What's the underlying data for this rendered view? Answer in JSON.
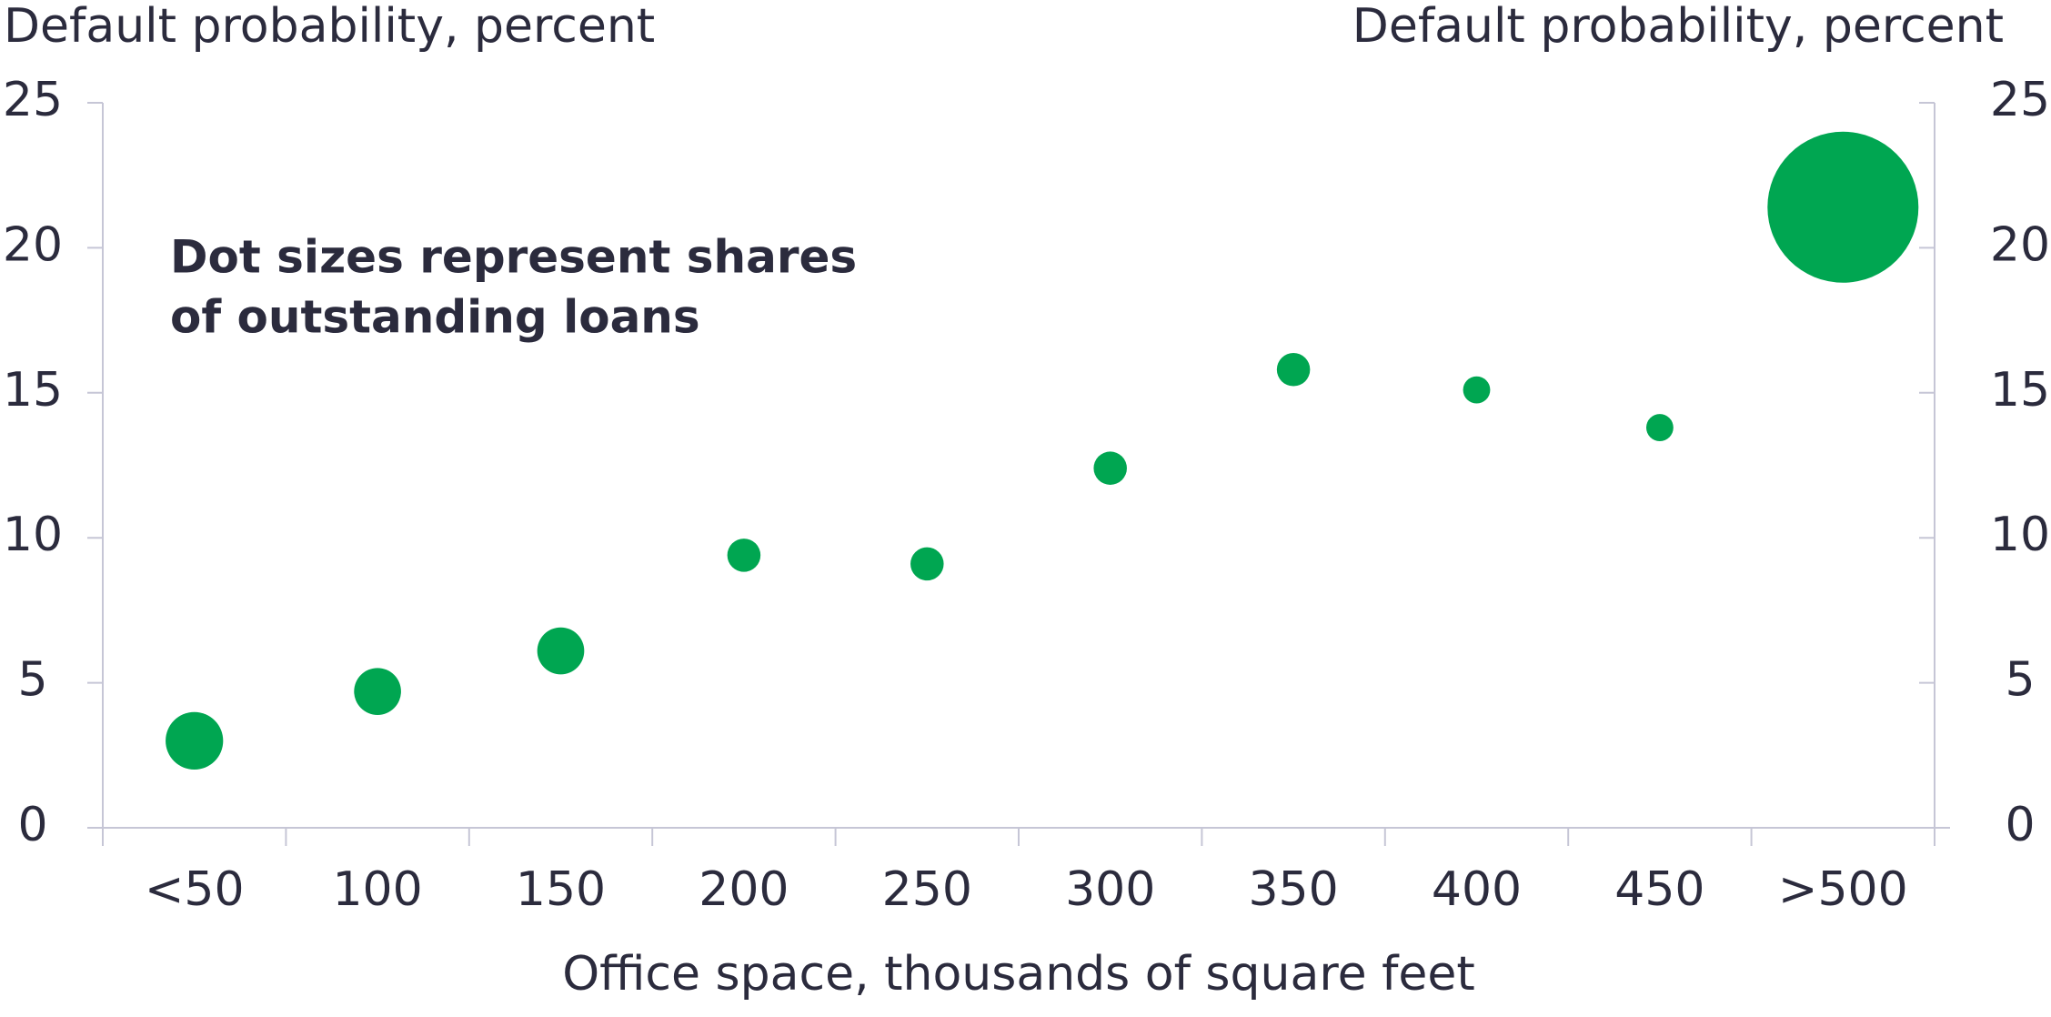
{
  "chart_data": {
    "type": "bubble",
    "ylabel": "Default probability, percent",
    "y2label": "Default probability, percent",
    "xlabel": "Office space, thousands of square feet",
    "annotation": [
      "Dot sizes represent shares",
      "of outstanding loans"
    ],
    "categories": [
      "<50",
      "100",
      "150",
      "200",
      "250",
      "300",
      "350",
      "400",
      "450",
      ">500"
    ],
    "values": [
      3.0,
      4.7,
      6.1,
      9.4,
      9.1,
      12.4,
      15.8,
      15.1,
      13.8,
      21.4
    ],
    "sizes": [
      9,
      6,
      6,
      3,
      3,
      3,
      3,
      2,
      2,
      62
    ],
    "color": "#00a651",
    "ylim": [
      0,
      25
    ],
    "yticks": [
      0,
      5,
      10,
      15,
      20,
      25
    ],
    "y2lim": [
      0,
      25
    ],
    "y2ticks": [
      0,
      5,
      10,
      15,
      20,
      25
    ]
  }
}
